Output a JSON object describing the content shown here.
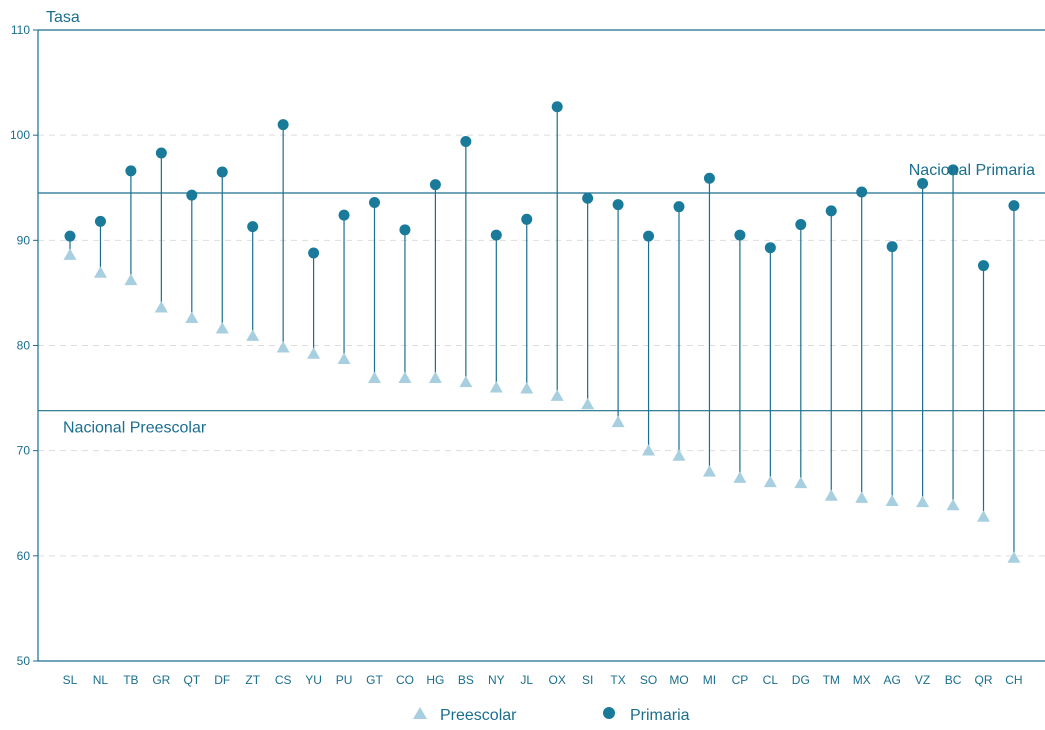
{
  "chart_data": {
    "type": "dot-range",
    "ylabel": "Tasa",
    "ylim": [
      50,
      110
    ],
    "yticks": [
      50,
      60,
      70,
      80,
      90,
      100,
      110
    ],
    "grid": "horizontal-dashed",
    "legend_position": "bottom-center",
    "categories": [
      "SL",
      "NL",
      "TB",
      "GR",
      "QT",
      "DF",
      "ZT",
      "CS",
      "YU",
      "PU",
      "GT",
      "CO",
      "HG",
      "BS",
      "NY",
      "JL",
      "OX",
      "SI",
      "TX",
      "SO",
      "MO",
      "MI",
      "CP",
      "CL",
      "DG",
      "TM",
      "MX",
      "AG",
      "VZ",
      "BC",
      "QR",
      "CH"
    ],
    "series": [
      {
        "name": "Preescolar",
        "marker": "triangle",
        "color": "#a8cfdf",
        "values": [
          88.6,
          86.9,
          86.2,
          83.6,
          82.6,
          81.6,
          80.9,
          79.8,
          79.2,
          78.7,
          76.9,
          76.9,
          76.9,
          76.5,
          76.0,
          75.9,
          75.2,
          74.4,
          72.7,
          70.0,
          69.5,
          68.0,
          67.4,
          67.0,
          66.9,
          65.7,
          65.5,
          65.2,
          65.1,
          64.8,
          63.7,
          59.8
        ]
      },
      {
        "name": "Primaria",
        "marker": "circle",
        "color": "#1a7a99",
        "values": [
          90.4,
          91.8,
          96.6,
          98.3,
          94.3,
          96.5,
          91.3,
          101.0,
          88.8,
          92.4,
          93.6,
          91.0,
          95.3,
          99.4,
          90.5,
          92.0,
          102.7,
          94.0,
          93.4,
          90.4,
          93.2,
          95.9,
          90.5,
          89.3,
          91.5,
          92.8,
          94.6,
          89.4,
          95.4,
          96.7,
          87.6,
          93.3
        ]
      }
    ],
    "reference_lines": [
      {
        "label": "Nacional Primaria",
        "value": 94.5
      },
      {
        "label": "Nacional Preescolar",
        "value": 73.8
      }
    ],
    "colors": {
      "axis": "#1a6e8e",
      "stem": "#1a6e8e",
      "grid": "#dddddd",
      "text": "#1a6e8e"
    }
  }
}
